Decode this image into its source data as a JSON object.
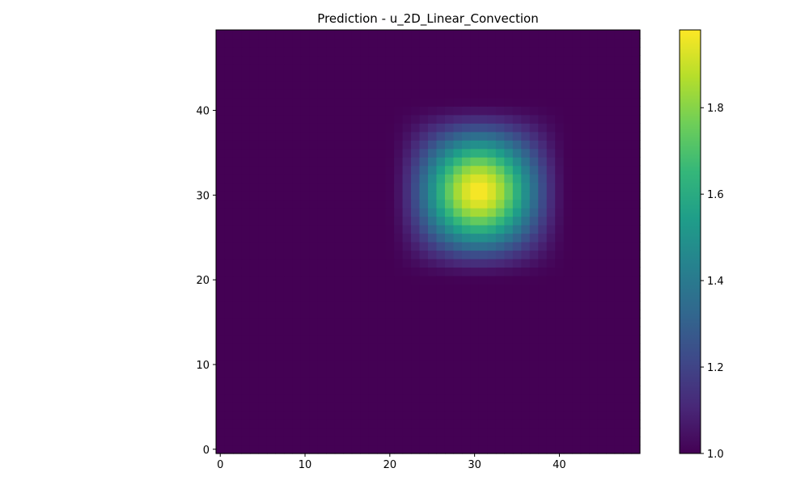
{
  "chart_data": {
    "type": "heatmap",
    "title": "Prediction - u_2D_Linear_Convection",
    "xlabel": "",
    "ylabel": "",
    "grid_size": 50,
    "x_ticks": [
      0,
      10,
      20,
      30,
      40
    ],
    "y_ticks": [
      0,
      10,
      20,
      30,
      40
    ],
    "x_range": [
      -0.5,
      49.5
    ],
    "y_range": [
      -0.5,
      49.5
    ],
    "origin": "lower",
    "colormap": "viridis",
    "colorbar": {
      "range": [
        1.0,
        1.98
      ],
      "ticks": [
        1.0,
        1.2,
        1.4,
        1.6,
        1.8
      ]
    },
    "field": {
      "baseline": 1.0,
      "peak": 1.98,
      "center_x": 30.5,
      "center_y": 30.5,
      "radius": 11
    },
    "grid": false
  }
}
